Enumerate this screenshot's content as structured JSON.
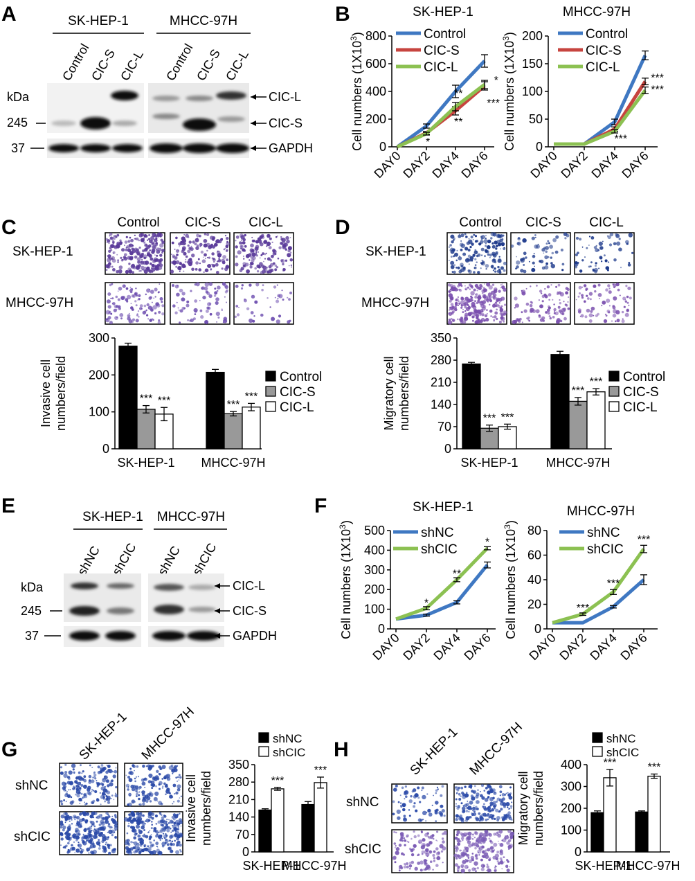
{
  "panel_letters": [
    "A",
    "B",
    "C",
    "D",
    "E",
    "F",
    "G",
    "H"
  ],
  "blotA": {
    "cells": [
      "SK-HEP-1",
      "MHCC-97H"
    ],
    "lanes": [
      "Control",
      "CIC-S",
      "CIC-L"
    ],
    "kda_label": "kDa",
    "markers": [
      "245",
      "37"
    ],
    "bands": [
      "CIC-L",
      "CIC-S",
      "GAPDH"
    ]
  },
  "blotE": {
    "cells": [
      "SK-HEP-1",
      "MHCC-97H"
    ],
    "lanes": [
      "shNC",
      "shCIC"
    ],
    "kda_label": "kDa",
    "markers": [
      "245",
      "37"
    ],
    "bands": [
      "CIC-L",
      "CIC-S",
      "GAPDH"
    ]
  },
  "imagesC": {
    "cols": [
      "Control",
      "CIC-S",
      "CIC-L"
    ],
    "rows": [
      "SK-HEP-1",
      "MHCC-97H"
    ],
    "stain": [
      "#5a3a9a",
      "#6e4fb0"
    ]
  },
  "imagesD": {
    "cols": [
      "Control",
      "CIC-S",
      "CIC-L"
    ],
    "rows": [
      "SK-HEP-1",
      "MHCC-97H"
    ],
    "stain": [
      "#1f3b8c",
      "#7a4fae"
    ]
  },
  "imagesG": {
    "cols": [
      "SK-HEP-1",
      "MHCC-97H"
    ],
    "rows": [
      "shNC",
      "shCIC"
    ],
    "stain": [
      "#2b4aa8",
      "#2b4aa8"
    ]
  },
  "imagesH": {
    "cols": [
      "SK-HEP-1",
      "MHCC-97H"
    ],
    "rows": [
      "shNC",
      "shCIC"
    ],
    "stain": [
      "#2b4aa8",
      "#7a5bb5"
    ]
  },
  "colors": {
    "blue": "#3f78c2",
    "red": "#c7443f",
    "green": "#8cc152",
    "black": "#000000",
    "gray": "#999999",
    "white": "#ffffff"
  },
  "chart_data": [
    {
      "id": "B1",
      "type": "line",
      "title": "SK-HEP-1",
      "ylabel": "Cell numbers (1X10",
      "ylabel_sup": "3",
      "ylabel_end": ")",
      "categories": [
        "DAY0",
        "DAY2",
        "DAY4",
        "DAY6"
      ],
      "ylim": [
        0,
        800
      ],
      "yticks": [
        0,
        200,
        400,
        600,
        800
      ],
      "series": [
        {
          "name": "Control",
          "color": "#3f78c2",
          "values": [
            0,
            150,
            400,
            620
          ],
          "err": [
            0,
            15,
            45,
            45
          ]
        },
        {
          "name": "CIC-S",
          "color": "#c7443f",
          "values": [
            0,
            100,
            260,
            440
          ],
          "err": [
            0,
            10,
            30,
            30
          ]
        },
        {
          "name": "CIC-L",
          "color": "#8cc152",
          "values": [
            0,
            95,
            290,
            450
          ],
          "err": [
            0,
            10,
            30,
            30
          ]
        }
      ],
      "annotations": [
        {
          "x": 1.05,
          "y": 10,
          "t": "*"
        },
        {
          "x": 2.1,
          "y": 360,
          "t": "**"
        },
        {
          "x": 2.1,
          "y": 155,
          "t": "**"
        },
        {
          "x": 3.4,
          "y": 455,
          "t": "*"
        },
        {
          "x": 3.3,
          "y": 290,
          "t": "***"
        }
      ]
    },
    {
      "id": "B2",
      "type": "line",
      "title": "MHCC-97H",
      "ylabel": "Cell numbers (1X10",
      "ylabel_sup": "3",
      "ylabel_end": ")",
      "categories": [
        "DAY0",
        "DAY2",
        "DAY4",
        "DAY6"
      ],
      "ylim": [
        0,
        200
      ],
      "yticks": [
        0,
        50,
        100,
        150,
        200
      ],
      "series": [
        {
          "name": "Control",
          "color": "#3f78c2",
          "values": [
            5,
            5,
            45,
            165
          ],
          "err": [
            0,
            0,
            5,
            8
          ]
        },
        {
          "name": "CIC-S",
          "color": "#c7443f",
          "values": [
            5,
            5,
            32,
            118
          ],
          "err": [
            0,
            0,
            4,
            6
          ]
        },
        {
          "name": "CIC-L",
          "color": "#8cc152",
          "values": [
            5,
            5,
            28,
            102
          ],
          "err": [
            0,
            0,
            3,
            6
          ]
        }
      ],
      "annotations": [
        {
          "x": 3.4,
          "y": 118,
          "t": "***"
        },
        {
          "x": 3.4,
          "y": 97,
          "t": "***"
        },
        {
          "x": 2.2,
          "y": 8,
          "t": "***"
        }
      ]
    },
    {
      "id": "C",
      "type": "bar",
      "ylabel": "Invasive cell numbers/field",
      "categories": [
        "SK-HEP-1",
        "MHCC-97H"
      ],
      "ylim": [
        0,
        300
      ],
      "yticks": [
        0,
        100,
        200,
        300
      ],
      "series": [
        {
          "name": "Control",
          "fill": "#000000",
          "values": [
            278,
            207
          ],
          "err": [
            8,
            8
          ]
        },
        {
          "name": "CIC-S",
          "fill": "#999999",
          "values": [
            107,
            95
          ],
          "err": [
            10,
            6
          ]
        },
        {
          "name": "CIC-L",
          "fill": "#ffffff",
          "values": [
            94,
            113
          ],
          "err": [
            18,
            10
          ]
        }
      ],
      "stars": [
        [
          "",
          "***",
          "***"
        ],
        [
          "",
          "***",
          "***"
        ]
      ]
    },
    {
      "id": "D",
      "type": "bar",
      "ylabel": "Migratory cell numbers/field",
      "categories": [
        "SK-HEP-1",
        "MHCC-97H"
      ],
      "ylim": [
        0,
        350
      ],
      "yticks": [
        0,
        70,
        140,
        210,
        280,
        350
      ],
      "series": [
        {
          "name": "Control",
          "fill": "#000000",
          "values": [
            268,
            298
          ],
          "err": [
            5,
            10
          ]
        },
        {
          "name": "CIC-S",
          "fill": "#999999",
          "values": [
            65,
            150
          ],
          "err": [
            10,
            12
          ]
        },
        {
          "name": "CIC-L",
          "fill": "#ffffff",
          "values": [
            70,
            180
          ],
          "err": [
            8,
            10
          ]
        }
      ],
      "stars": [
        [
          "",
          "***",
          "***"
        ],
        [
          "",
          "***",
          "***"
        ]
      ]
    },
    {
      "id": "F1",
      "type": "line",
      "title": "SK-HEP-1",
      "ylabel": "Cell numbers (1X10",
      "ylabel_sup": "3",
      "ylabel_end": ")",
      "categories": [
        "DAY0",
        "DAY2",
        "DAY4",
        "DAY6"
      ],
      "ylim": [
        0,
        500
      ],
      "yticks": [
        0,
        100,
        200,
        300,
        400,
        500
      ],
      "series": [
        {
          "name": "shNC",
          "color": "#3f78c2",
          "values": [
            50,
            70,
            135,
            325
          ],
          "err": [
            0,
            5,
            8,
            15
          ]
        },
        {
          "name": "shCIC",
          "color": "#8cc152",
          "values": [
            50,
            105,
            250,
            410
          ],
          "err": [
            0,
            8,
            10,
            8
          ]
        }
      ],
      "annotations": [
        {
          "x": 1.0,
          "y": 115,
          "t": "*"
        },
        {
          "x": 2.0,
          "y": 262,
          "t": "**"
        },
        {
          "x": 3.0,
          "y": 425,
          "t": "*"
        }
      ]
    },
    {
      "id": "F2",
      "type": "line",
      "title": "MHCC-97H",
      "ylabel": "Cell numbers (1X10",
      "ylabel_sup": "3",
      "ylabel_end": ")",
      "categories": [
        "DAY0",
        "DAY2",
        "DAY4",
        "DAY6"
      ],
      "ylim": [
        0,
        80
      ],
      "yticks": [
        0,
        20,
        40,
        60,
        80
      ],
      "series": [
        {
          "name": "shNC",
          "color": "#3f78c2",
          "values": [
            5,
            5,
            18,
            40
          ],
          "err": [
            0,
            0,
            1,
            4
          ]
        },
        {
          "name": "shCIC",
          "color": "#8cc152",
          "values": [
            5,
            12,
            30,
            65
          ],
          "err": [
            0,
            1,
            2,
            3
          ]
        }
      ],
      "annotations": [
        {
          "x": 1.0,
          "y": 14,
          "t": "***"
        },
        {
          "x": 2.0,
          "y": 34,
          "t": "***"
        },
        {
          "x": 3.0,
          "y": 70,
          "t": "***"
        }
      ]
    },
    {
      "id": "G",
      "type": "bar",
      "ylabel": "Invasive cell numbers/field",
      "categories": [
        "SK-HEP-1",
        "MHCC-97H"
      ],
      "ylim": [
        0,
        350
      ],
      "yticks": [
        0,
        70,
        140,
        210,
        280,
        350
      ],
      "series": [
        {
          "name": "shNC",
          "fill": "#000000",
          "values": [
            168,
            190
          ],
          "err": [
            5,
            12
          ]
        },
        {
          "name": "shCIC",
          "fill": "#ffffff",
          "values": [
            253,
            278
          ],
          "err": [
            6,
            22
          ]
        }
      ],
      "stars": [
        [
          "",
          "***"
        ],
        [
          "",
          "***"
        ]
      ]
    },
    {
      "id": "H",
      "type": "bar",
      "ylabel": "Migratory cell numbers/field",
      "categories": [
        "SK-HEP-1",
        "MHCC-97H"
      ],
      "ylim": [
        0,
        400
      ],
      "yticks": [
        0,
        100,
        200,
        300,
        400
      ],
      "series": [
        {
          "name": "shNC",
          "fill": "#000000",
          "values": [
            180,
            183
          ],
          "err": [
            8,
            5
          ]
        },
        {
          "name": "shCIC",
          "fill": "#ffffff",
          "values": [
            340,
            347
          ],
          "err": [
            38,
            10
          ]
        }
      ],
      "stars": [
        [
          "",
          "***"
        ],
        [
          "",
          "***"
        ]
      ]
    }
  ]
}
